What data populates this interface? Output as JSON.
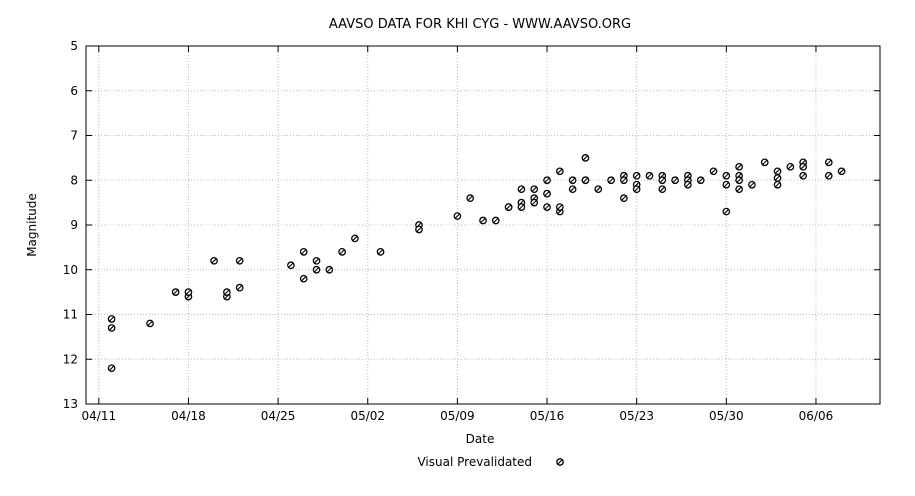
{
  "chart_data": {
    "type": "scatter",
    "title": "AAVSO DATA FOR KHI CYG - WWW.AAVSO.ORG",
    "xlabel": "Date",
    "ylabel": "Magnitude",
    "x_axis_type": "date",
    "xlim": [
      "2020-04-10",
      "2020-06-11"
    ],
    "x_ticks": [
      {
        "date": "2020-04-11",
        "label": "04/11"
      },
      {
        "date": "2020-04-18",
        "label": "04/18"
      },
      {
        "date": "2020-04-25",
        "label": "04/25"
      },
      {
        "date": "2020-05-02",
        "label": "05/02"
      },
      {
        "date": "2020-05-09",
        "label": "05/09"
      },
      {
        "date": "2020-05-16",
        "label": "05/16"
      },
      {
        "date": "2020-05-23",
        "label": "05/23"
      },
      {
        "date": "2020-05-30",
        "label": "05/30"
      },
      {
        "date": "2020-06-06",
        "label": "06/06"
      }
    ],
    "ylim": [
      5,
      13
    ],
    "y_inverted": true,
    "y_ticks": [
      5,
      6,
      7,
      8,
      9,
      10,
      11,
      12,
      13
    ],
    "grid": true,
    "legend_placement": "bottom-center",
    "series": [
      {
        "name": "Visual Prevalidated",
        "points": [
          {
            "x": "2020-04-12",
            "y": 11.1
          },
          {
            "x": "2020-04-12",
            "y": 11.3
          },
          {
            "x": "2020-04-12",
            "y": 12.2
          },
          {
            "x": "2020-04-15",
            "y": 11.2
          },
          {
            "x": "2020-04-17",
            "y": 10.5
          },
          {
            "x": "2020-04-18",
            "y": 10.6
          },
          {
            "x": "2020-04-18",
            "y": 10.5
          },
          {
            "x": "2020-04-20",
            "y": 9.8
          },
          {
            "x": "2020-04-21",
            "y": 10.6
          },
          {
            "x": "2020-04-21",
            "y": 10.5
          },
          {
            "x": "2020-04-22",
            "y": 9.8
          },
          {
            "x": "2020-04-22",
            "y": 10.4
          },
          {
            "x": "2020-04-26",
            "y": 9.9
          },
          {
            "x": "2020-04-27",
            "y": 9.6
          },
          {
            "x": "2020-04-27",
            "y": 10.2
          },
          {
            "x": "2020-04-28",
            "y": 9.8
          },
          {
            "x": "2020-04-28",
            "y": 10.0
          },
          {
            "x": "2020-04-29",
            "y": 10.0
          },
          {
            "x": "2020-04-30",
            "y": 9.6
          },
          {
            "x": "2020-05-01",
            "y": 9.3
          },
          {
            "x": "2020-05-03",
            "y": 9.6
          },
          {
            "x": "2020-05-06",
            "y": 9.0
          },
          {
            "x": "2020-05-06",
            "y": 9.1
          },
          {
            "x": "2020-05-09",
            "y": 8.8
          },
          {
            "x": "2020-05-10",
            "y": 8.4
          },
          {
            "x": "2020-05-11",
            "y": 8.9
          },
          {
            "x": "2020-05-12",
            "y": 8.9
          },
          {
            "x": "2020-05-13",
            "y": 8.6
          },
          {
            "x": "2020-05-13",
            "y": 8.6
          },
          {
            "x": "2020-05-14",
            "y": 8.2
          },
          {
            "x": "2020-05-14",
            "y": 8.5
          },
          {
            "x": "2020-05-14",
            "y": 8.6
          },
          {
            "x": "2020-05-15",
            "y": 8.2
          },
          {
            "x": "2020-05-15",
            "y": 8.4
          },
          {
            "x": "2020-05-15",
            "y": 8.5
          },
          {
            "x": "2020-05-16",
            "y": 8.0
          },
          {
            "x": "2020-05-16",
            "y": 8.3
          },
          {
            "x": "2020-05-16",
            "y": 8.3
          },
          {
            "x": "2020-05-16",
            "y": 8.6
          },
          {
            "x": "2020-05-17",
            "y": 7.8
          },
          {
            "x": "2020-05-17",
            "y": 8.7
          },
          {
            "x": "2020-05-17",
            "y": 8.6
          },
          {
            "x": "2020-05-18",
            "y": 8.0
          },
          {
            "x": "2020-05-18",
            "y": 8.2
          },
          {
            "x": "2020-05-19",
            "y": 7.5
          },
          {
            "x": "2020-05-19",
            "y": 8.0
          },
          {
            "x": "2020-05-19",
            "y": 8.0
          },
          {
            "x": "2020-05-20",
            "y": 8.2
          },
          {
            "x": "2020-05-21",
            "y": 8.0
          },
          {
            "x": "2020-05-22",
            "y": 7.9
          },
          {
            "x": "2020-05-22",
            "y": 8.0
          },
          {
            "x": "2020-05-22",
            "y": 8.4
          },
          {
            "x": "2020-05-23",
            "y": 7.9
          },
          {
            "x": "2020-05-23",
            "y": 8.1
          },
          {
            "x": "2020-05-23",
            "y": 8.2
          },
          {
            "x": "2020-05-24",
            "y": 7.9
          },
          {
            "x": "2020-05-25",
            "y": 7.9
          },
          {
            "x": "2020-05-25",
            "y": 8.0
          },
          {
            "x": "2020-05-25",
            "y": 8.2
          },
          {
            "x": "2020-05-26",
            "y": 8.0
          },
          {
            "x": "2020-05-27",
            "y": 7.9
          },
          {
            "x": "2020-05-27",
            "y": 8.0
          },
          {
            "x": "2020-05-27",
            "y": 8.1
          },
          {
            "x": "2020-05-28",
            "y": 8.0
          },
          {
            "x": "2020-05-29",
            "y": 7.8
          },
          {
            "x": "2020-05-30",
            "y": 8.7
          },
          {
            "x": "2020-05-30",
            "y": 7.9
          },
          {
            "x": "2020-05-30",
            "y": 8.1
          },
          {
            "x": "2020-05-31",
            "y": 7.7
          },
          {
            "x": "2020-05-31",
            "y": 7.9
          },
          {
            "x": "2020-05-31",
            "y": 8.0
          },
          {
            "x": "2020-05-31",
            "y": 8.2
          },
          {
            "x": "2020-06-01",
            "y": 8.1
          },
          {
            "x": "2020-06-02",
            "y": 7.6
          },
          {
            "x": "2020-06-03",
            "y": 7.8
          },
          {
            "x": "2020-06-03",
            "y": 8.1
          },
          {
            "x": "2020-06-03",
            "y": 7.95
          },
          {
            "x": "2020-06-04",
            "y": 7.7
          },
          {
            "x": "2020-06-05",
            "y": 7.6
          },
          {
            "x": "2020-06-05",
            "y": 7.7
          },
          {
            "x": "2020-06-05",
            "y": 7.9
          },
          {
            "x": "2020-06-07",
            "y": 7.6
          },
          {
            "x": "2020-06-07",
            "y": 7.9
          },
          {
            "x": "2020-06-08",
            "y": 7.8
          }
        ]
      }
    ]
  }
}
